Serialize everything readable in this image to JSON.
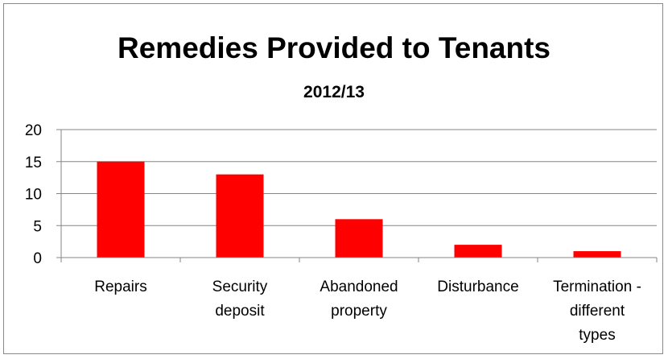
{
  "chart_data": {
    "type": "bar",
    "title": "Remedies Provided to Tenants",
    "subtitle": "2012/13",
    "xlabel": "",
    "ylabel": "",
    "categories": [
      "Repairs",
      "Security deposit",
      "Abandoned property",
      "Disturbance",
      "Termination - different types"
    ],
    "category_lines": [
      [
        "Repairs"
      ],
      [
        "Security",
        "deposit"
      ],
      [
        "Abandoned",
        "property"
      ],
      [
        "Disturbance"
      ],
      [
        "Termination -",
        "different",
        "types"
      ]
    ],
    "values": [
      15,
      13,
      6,
      2,
      1
    ],
    "ylim": [
      0,
      20
    ],
    "yticks": [
      0,
      5,
      10,
      15,
      20
    ],
    "grid": true,
    "legend": "none",
    "bar_color": "#ff0000",
    "grid_color": "#868686"
  }
}
